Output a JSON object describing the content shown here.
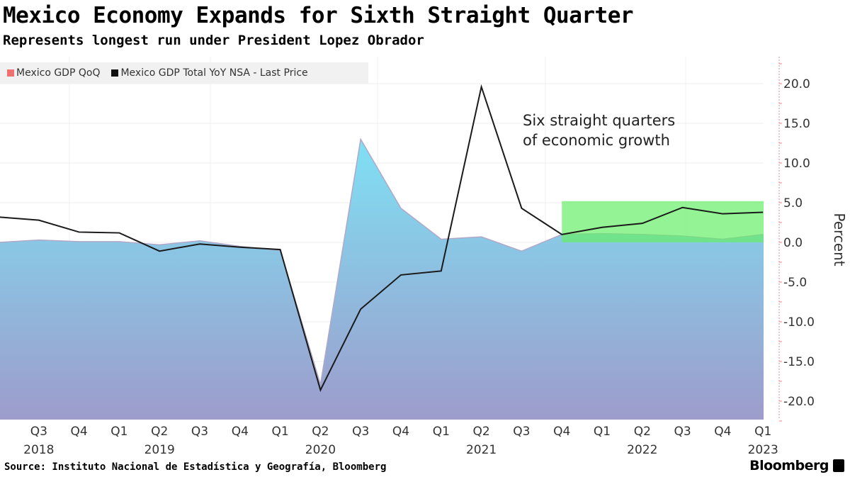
{
  "header": {
    "title": "Mexico Economy Expands for Sixth Straight Quarter",
    "subtitle": "Represents longest run under President Lopez Obrador"
  },
  "footer": {
    "source": "Source: Instituto Nacional de Estadística y Geografía, Bloomberg",
    "logo": "Bloomberg"
  },
  "chart_data": {
    "type": "area+line",
    "ylabel": "Percent",
    "ylim": [
      -22,
      23
    ],
    "yticks": [
      "20.0",
      "15.0",
      "10.0",
      "5.0",
      "0.0",
      "-5.0",
      "-10.0",
      "-15.0",
      "-20.0"
    ],
    "ytick_values": [
      20,
      15,
      10,
      5,
      0,
      -5,
      -10,
      -15,
      -20
    ],
    "x": [
      "Q2 2018",
      "Q3 2018",
      "Q4 2018",
      "Q1 2019",
      "Q2 2019",
      "Q3 2019",
      "Q4 2019",
      "Q1 2020",
      "Q2 2020",
      "Q3 2020",
      "Q4 2020",
      "Q1 2021",
      "Q2 2021",
      "Q3 2021",
      "Q4 2021",
      "Q1 2022",
      "Q2 2022",
      "Q3 2022",
      "Q4 2022",
      "Q1 2023"
    ],
    "xtick_labels": [
      {
        "q": "Q3",
        "year": "2018"
      },
      {
        "q": "Q4",
        "year": ""
      },
      {
        "q": "Q1",
        "year": ""
      },
      {
        "q": "Q2",
        "year": "2019"
      },
      {
        "q": "Q3",
        "year": ""
      },
      {
        "q": "Q4",
        "year": ""
      },
      {
        "q": "Q1",
        "year": ""
      },
      {
        "q": "Q2",
        "year": "2020"
      },
      {
        "q": "Q3",
        "year": ""
      },
      {
        "q": "Q4",
        "year": ""
      },
      {
        "q": "Q1",
        "year": ""
      },
      {
        "q": "Q2",
        "year": "2021"
      },
      {
        "q": "Q3",
        "year": ""
      },
      {
        "q": "Q4",
        "year": ""
      },
      {
        "q": "Q1",
        "year": ""
      },
      {
        "q": "Q2",
        "year": "2022"
      },
      {
        "q": "Q3",
        "year": ""
      },
      {
        "q": "Q4",
        "year": ""
      },
      {
        "q": "Q1",
        "year": "2023"
      }
    ],
    "series": [
      {
        "name": "Mexico GDP QoQ",
        "type": "area",
        "legend_color": "#f07070",
        "fill_top": "#7fe0f4",
        "fill_bottom": "#9d9ccb",
        "values": [
          0.0,
          0.3,
          0.1,
          0.1,
          -0.3,
          0.2,
          -0.5,
          -1.0,
          -17.9,
          13.0,
          4.3,
          0.4,
          0.7,
          -1.1,
          1.0,
          1.1,
          1.0,
          0.8,
          0.4,
          1.0
        ]
      },
      {
        "name": "Mexico GDP Total YoY NSA - Last Price",
        "type": "line",
        "color": "#1a1a1a",
        "values": [
          3.2,
          2.8,
          1.3,
          1.2,
          -1.1,
          -0.2,
          -0.6,
          -0.9,
          -18.6,
          -8.4,
          -4.1,
          -3.6,
          19.6,
          4.3,
          1.0,
          1.9,
          2.4,
          4.4,
          3.6,
          3.8
        ]
      }
    ],
    "highlight": {
      "from": "Q4 2021",
      "to": "Q1 2023",
      "y_from": 0,
      "y_to": 5.2,
      "color": "#66ee66"
    },
    "annotation": {
      "line1": "Six straight quarters",
      "line2": "of economic growth"
    },
    "legend": "top-left",
    "grid": true
  }
}
